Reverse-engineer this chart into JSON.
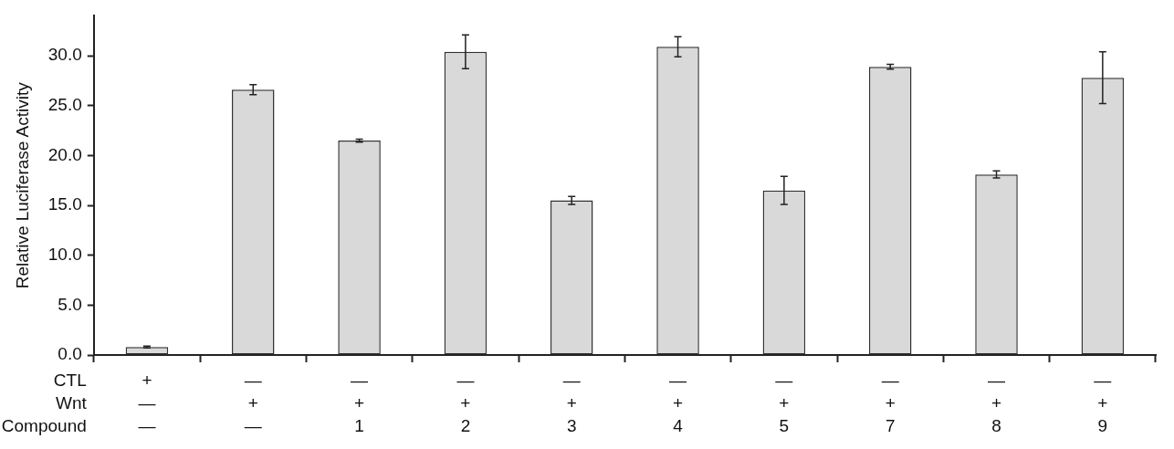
{
  "chart_data": {
    "type": "bar",
    "ylabel": "Relative Luciferase Activity",
    "categories": [
      "+\n—\n—",
      "—\n+\n—",
      "—\n+\n1",
      "—\n+\n2",
      "—\n+\n3",
      "—\n+\n4",
      "—\n+\n5",
      "—\n+\n7",
      "—\n+\n8",
      "—\n+\n9"
    ],
    "values": [
      0.8,
      26.6,
      21.5,
      30.4,
      15.5,
      30.9,
      16.5,
      28.9,
      18.1,
      27.8
    ],
    "errors": [
      0.1,
      0.5,
      0.15,
      1.7,
      0.4,
      1.0,
      1.4,
      0.25,
      0.35,
      2.6
    ],
    "color": "#d9d9d9",
    "ylim": [
      0,
      34
    ],
    "yticks": [
      {
        "value": 0,
        "label": "0.0"
      },
      {
        "value": 5,
        "label": "5.0"
      },
      {
        "value": 10,
        "label": "10.0"
      },
      {
        "value": 15,
        "label": "15.0"
      },
      {
        "value": 20,
        "label": "20.0"
      },
      {
        "value": 25,
        "label": "25.0"
      },
      {
        "value": 30,
        "label": "30.0"
      }
    ],
    "grid": false,
    "legend": false,
    "annotations": [
      "CTL",
      "Wnt",
      "Compound"
    ]
  }
}
